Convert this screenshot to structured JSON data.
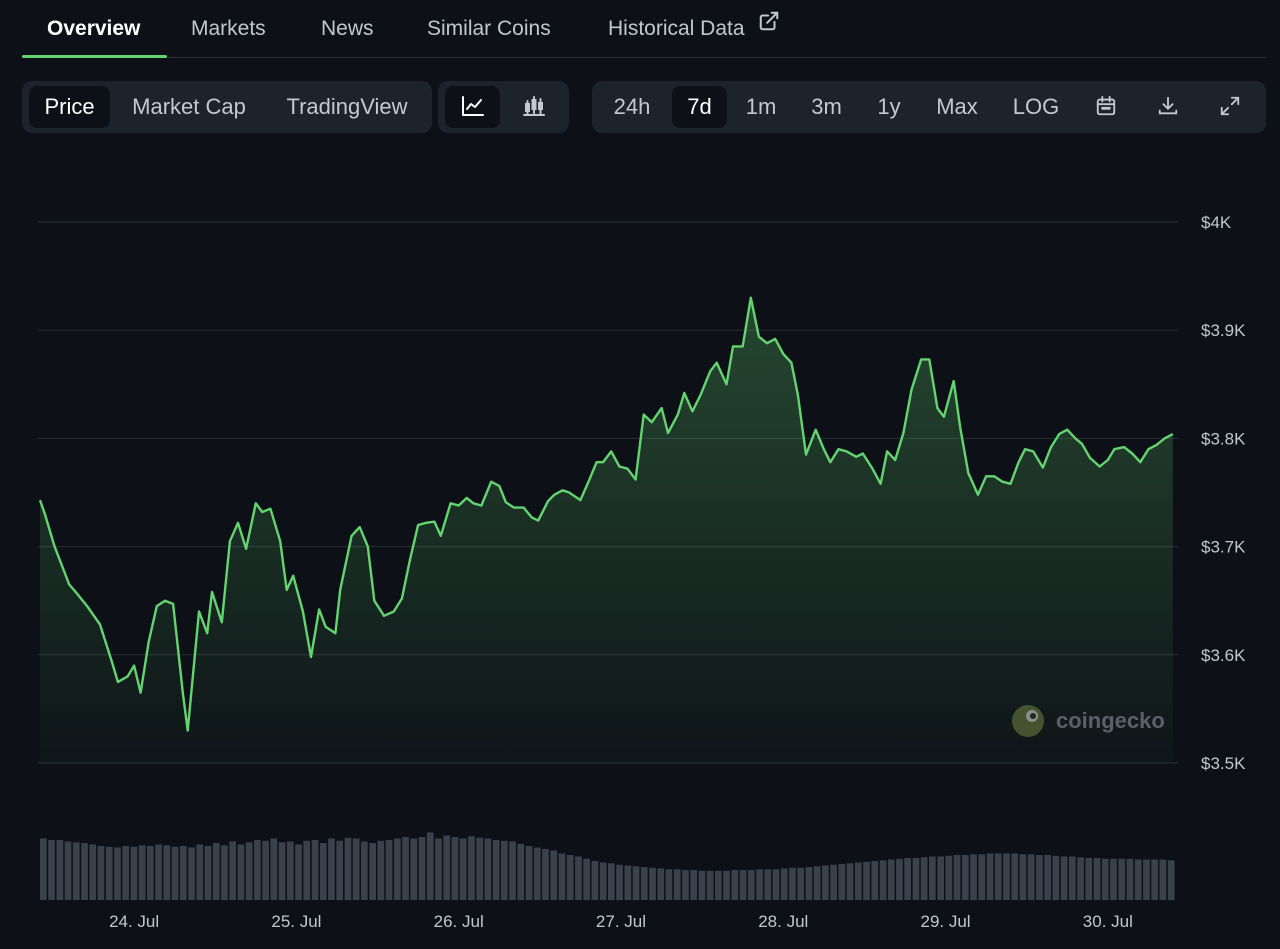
{
  "tabs": [
    {
      "label": "Overview",
      "active": true
    },
    {
      "label": "Markets"
    },
    {
      "label": "News"
    },
    {
      "label": "Similar Coins"
    },
    {
      "label": "Historical Data"
    }
  ],
  "metric_buttons": [
    {
      "label": "Price",
      "active": true
    },
    {
      "label": "Market Cap"
    },
    {
      "label": "TradingView"
    }
  ],
  "chart_type_buttons": [
    {
      "icon": "line-chart-icon",
      "active": true
    },
    {
      "icon": "candlestick-icon"
    }
  ],
  "range_buttons": [
    {
      "label": "24h"
    },
    {
      "label": "7d",
      "active": true
    },
    {
      "label": "1m"
    },
    {
      "label": "3m"
    },
    {
      "label": "1y"
    },
    {
      "label": "Max"
    },
    {
      "label": "LOG"
    }
  ],
  "tool_icons": [
    "calendar-icon",
    "download-icon",
    "fullscreen-icon"
  ],
  "watermark": "coingecko",
  "colors": {
    "line": "#63d46f",
    "background": "#0d1117",
    "panel": "#1d232c",
    "grid": "#2a2f37",
    "volume": "#3a414c"
  },
  "chart_data": {
    "type": "line",
    "title": "",
    "xlabel": "",
    "ylabel": "",
    "y_tick_labels": [
      "$4K",
      "$3.9K",
      "$3.8K",
      "$3.7K",
      "$3.6K",
      "$3.5K"
    ],
    "y_ticks": [
      4000,
      3900,
      3800,
      3700,
      3600,
      3500
    ],
    "ylim": [
      3500,
      4000
    ],
    "x_tick_labels": [
      "24. Jul",
      "25. Jul",
      "26. Jul",
      "27. Jul",
      "28. Jul",
      "29. Jul",
      "30. Jul"
    ],
    "x_ticks": [
      0.58,
      1.58,
      2.58,
      3.58,
      4.58,
      5.58,
      6.58
    ],
    "xlim": [
      0,
      7.0
    ],
    "grid": true,
    "area_fill": true,
    "x": [
      0,
      0.03,
      0.09,
      0.18,
      0.22,
      0.29,
      0.37,
      0.44,
      0.48,
      0.54,
      0.58,
      0.62,
      0.67,
      0.72,
      0.77,
      0.82,
      0.88,
      0.91,
      0.98,
      1.03,
      1.06,
      1.12,
      1.17,
      1.22,
      1.27,
      1.33,
      1.37,
      1.42,
      1.48,
      1.52,
      1.56,
      1.62,
      1.67,
      1.72,
      1.76,
      1.82,
      1.85,
      1.92,
      1.97,
      2.02,
      2.06,
      2.12,
      2.18,
      2.23,
      2.28,
      2.33,
      2.38,
      2.43,
      2.47,
      2.53,
      2.58,
      2.63,
      2.67,
      2.72,
      2.78,
      2.83,
      2.87,
      2.92,
      2.98,
      3.03,
      3.07,
      3.13,
      3.17,
      3.22,
      3.26,
      3.33,
      3.38,
      3.43,
      3.47,
      3.52,
      3.57,
      3.62,
      3.67,
      3.72,
      3.77,
      3.83,
      3.87,
      3.93,
      3.97,
      4.02,
      4.07,
      4.13,
      4.17,
      4.23,
      4.27,
      4.33,
      4.38,
      4.43,
      4.48,
      4.53,
      4.58,
      4.63,
      4.67,
      4.72,
      4.78,
      4.83,
      4.87,
      4.92,
      4.97,
      5.03,
      5.07,
      5.13,
      5.18,
      5.22,
      5.27,
      5.32,
      5.37,
      5.43,
      5.48,
      5.53,
      5.57,
      5.63,
      5.67,
      5.72,
      5.78,
      5.83,
      5.88,
      5.93,
      5.98,
      6.03,
      6.07,
      6.12,
      6.18,
      6.23,
      6.28,
      6.33,
      6.38,
      6.42,
      6.47,
      6.53,
      6.58,
      6.62,
      6.68,
      6.73,
      6.78,
      6.83,
      6.88,
      6.93,
      6.98
    ],
    "values": [
      3743,
      3730,
      3700,
      3665,
      3658,
      3645,
      3628,
      3595,
      3575,
      3580,
      3590,
      3565,
      3612,
      3645,
      3650,
      3647,
      3565,
      3530,
      3640,
      3620,
      3658,
      3630,
      3705,
      3722,
      3698,
      3740,
      3732,
      3735,
      3705,
      3660,
      3673,
      3640,
      3598,
      3642,
      3626,
      3620,
      3660,
      3710,
      3718,
      3700,
      3650,
      3636,
      3640,
      3652,
      3688,
      3720,
      3722,
      3723,
      3710,
      3740,
      3738,
      3745,
      3740,
      3738,
      3760,
      3756,
      3741,
      3736,
      3736,
      3727,
      3724,
      3742,
      3748,
      3752,
      3750,
      3743,
      3760,
      3778,
      3778,
      3788,
      3774,
      3772,
      3762,
      3822,
      3815,
      3828,
      3805,
      3822,
      3842,
      3825,
      3840,
      3862,
      3870,
      3850,
      3885,
      3885,
      3930,
      3894,
      3888,
      3892,
      3878,
      3870,
      3840,
      3785,
      3808,
      3790,
      3778,
      3790,
      3788,
      3783,
      3786,
      3772,
      3758,
      3788,
      3780,
      3805,
      3845,
      3873,
      3873,
      3828,
      3820,
      3853,
      3810,
      3768,
      3748,
      3765,
      3765,
      3760,
      3758,
      3778,
      3790,
      3788,
      3773,
      3792,
      3804,
      3808,
      3800,
      3795,
      3782,
      3774,
      3780,
      3790,
      3792,
      3786,
      3778,
      3790,
      3794,
      3800,
      3804
    ],
    "volume_relative": [
      0.82,
      0.8,
      0.8,
      0.78,
      0.77,
      0.76,
      0.74,
      0.72,
      0.71,
      0.7,
      0.72,
      0.71,
      0.73,
      0.72,
      0.74,
      0.73,
      0.71,
      0.72,
      0.7,
      0.74,
      0.72,
      0.76,
      0.73,
      0.78,
      0.74,
      0.77,
      0.8,
      0.79,
      0.82,
      0.77,
      0.78,
      0.74,
      0.79,
      0.8,
      0.76,
      0.82,
      0.79,
      0.83,
      0.82,
      0.78,
      0.76,
      0.79,
      0.8,
      0.82,
      0.84,
      0.82,
      0.84,
      0.9,
      0.82,
      0.86,
      0.84,
      0.82,
      0.85,
      0.83,
      0.82,
      0.8,
      0.79,
      0.78,
      0.75,
      0.72,
      0.7,
      0.68,
      0.66,
      0.62,
      0.6,
      0.58,
      0.55,
      0.52,
      0.5,
      0.49,
      0.47,
      0.46,
      0.45,
      0.44,
      0.43,
      0.42,
      0.41,
      0.41,
      0.4,
      0.4,
      0.39,
      0.39,
      0.39,
      0.39,
      0.4,
      0.4,
      0.4,
      0.41,
      0.41,
      0.41,
      0.42,
      0.43,
      0.43,
      0.44,
      0.45,
      0.46,
      0.47,
      0.48,
      0.49,
      0.5,
      0.51,
      0.52,
      0.53,
      0.54,
      0.55,
      0.56,
      0.56,
      0.57,
      0.58,
      0.58,
      0.59,
      0.6,
      0.6,
      0.61,
      0.61,
      0.62,
      0.62,
      0.62,
      0.62,
      0.61,
      0.61,
      0.6,
      0.6,
      0.59,
      0.58,
      0.58,
      0.57,
      0.56,
      0.56,
      0.55,
      0.55,
      0.55,
      0.55,
      0.54,
      0.54,
      0.54,
      0.54,
      0.53
    ]
  }
}
